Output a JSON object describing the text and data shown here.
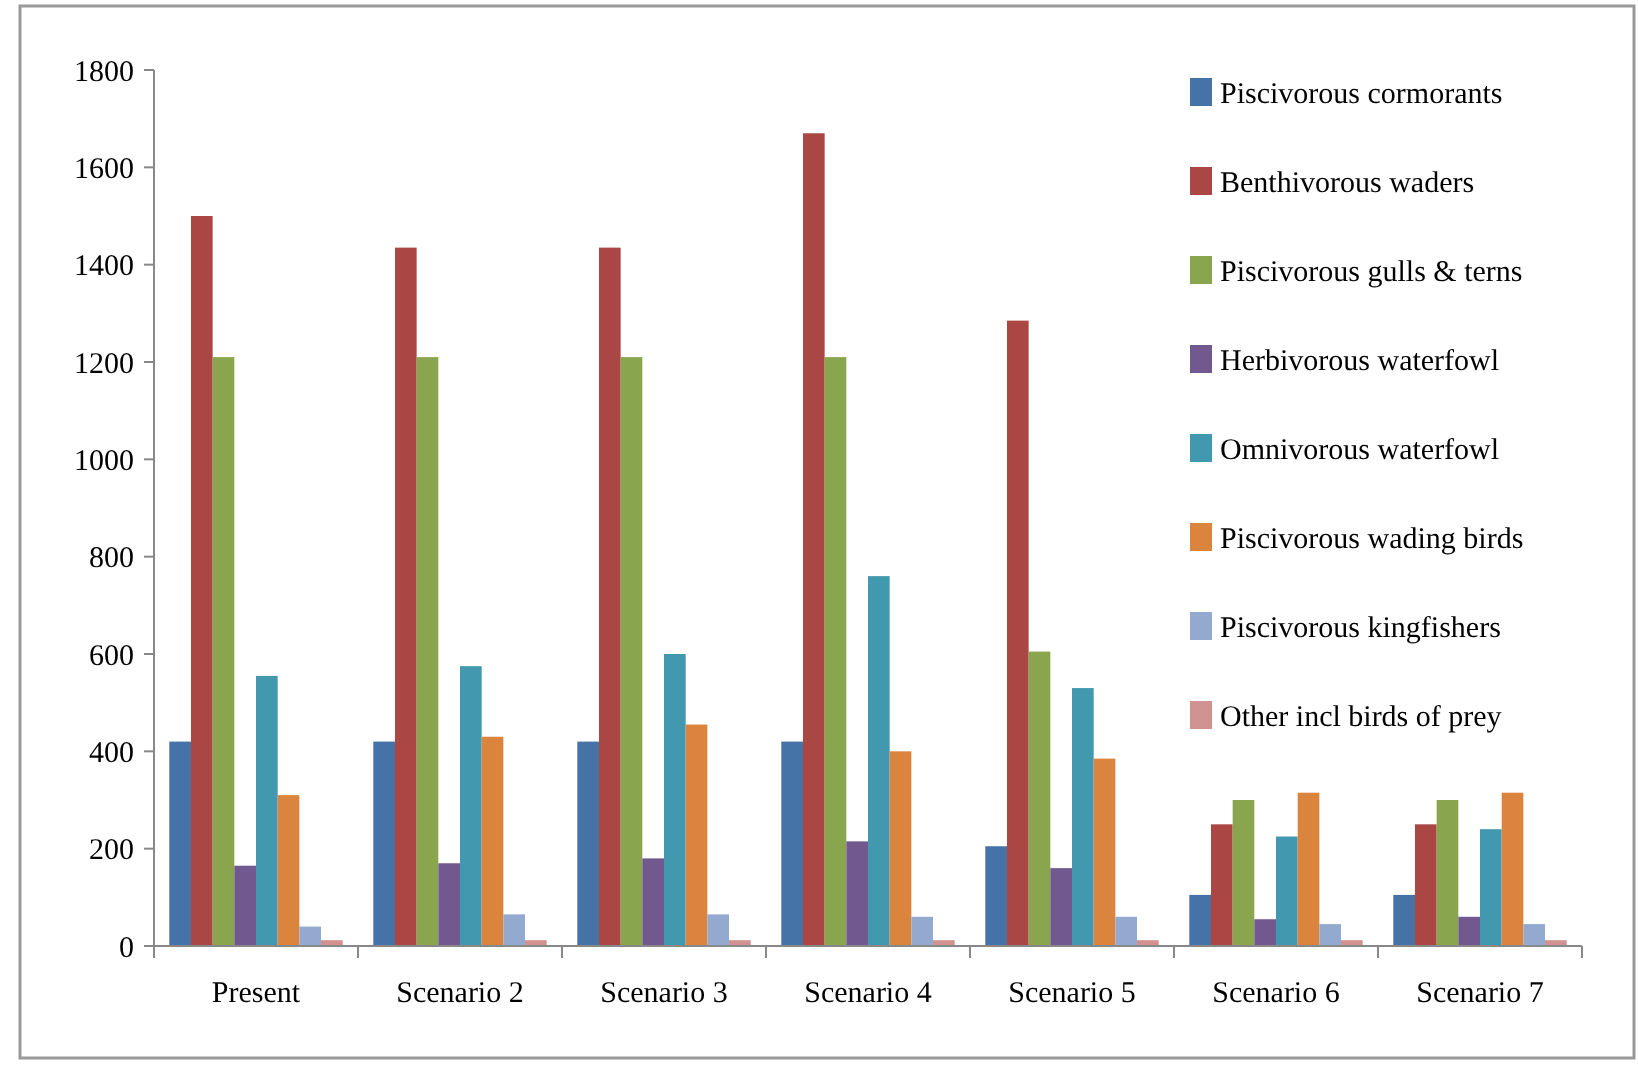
{
  "chart_data": {
    "type": "bar",
    "categories": [
      "Present",
      "Scenario 2",
      "Scenario 3",
      "Scenario 4",
      "Scenario 5",
      "Scenario 6",
      "Scenario 7"
    ],
    "series": [
      {
        "name": "Piscivorous cormorants",
        "color": "#4572a7",
        "values": [
          420,
          420,
          420,
          420,
          205,
          105,
          105
        ]
      },
      {
        "name": "Benthivorous waders",
        "color": "#aa4643",
        "values": [
          1500,
          1435,
          1435,
          1670,
          1285,
          250,
          250
        ]
      },
      {
        "name": "Piscivorous gulls & terns",
        "color": "#89a54e",
        "values": [
          1210,
          1210,
          1210,
          1210,
          605,
          300,
          300
        ]
      },
      {
        "name": "Herbivorous waterfowl",
        "color": "#71588f",
        "values": [
          165,
          170,
          180,
          215,
          160,
          55,
          60
        ]
      },
      {
        "name": "Omnivorous waterfowl",
        "color": "#4198af",
        "values": [
          555,
          575,
          600,
          760,
          530,
          225,
          240
        ]
      },
      {
        "name": "Piscivorous wading birds",
        "color": "#db843d",
        "values": [
          310,
          430,
          455,
          400,
          385,
          315,
          315
        ]
      },
      {
        "name": "Piscivorous kingfishers",
        "color": "#93a9cf",
        "values": [
          40,
          65,
          65,
          60,
          60,
          45,
          45
        ]
      },
      {
        "name": "Other incl birds of prey",
        "color": "#d19392",
        "values": [
          12,
          12,
          12,
          12,
          12,
          12,
          12
        ]
      }
    ],
    "ylim": [
      0,
      1800
    ],
    "yticks": [
      0,
      200,
      400,
      600,
      800,
      1000,
      1200,
      1400,
      1600,
      1800
    ],
    "grid": false,
    "legend": "top right"
  }
}
